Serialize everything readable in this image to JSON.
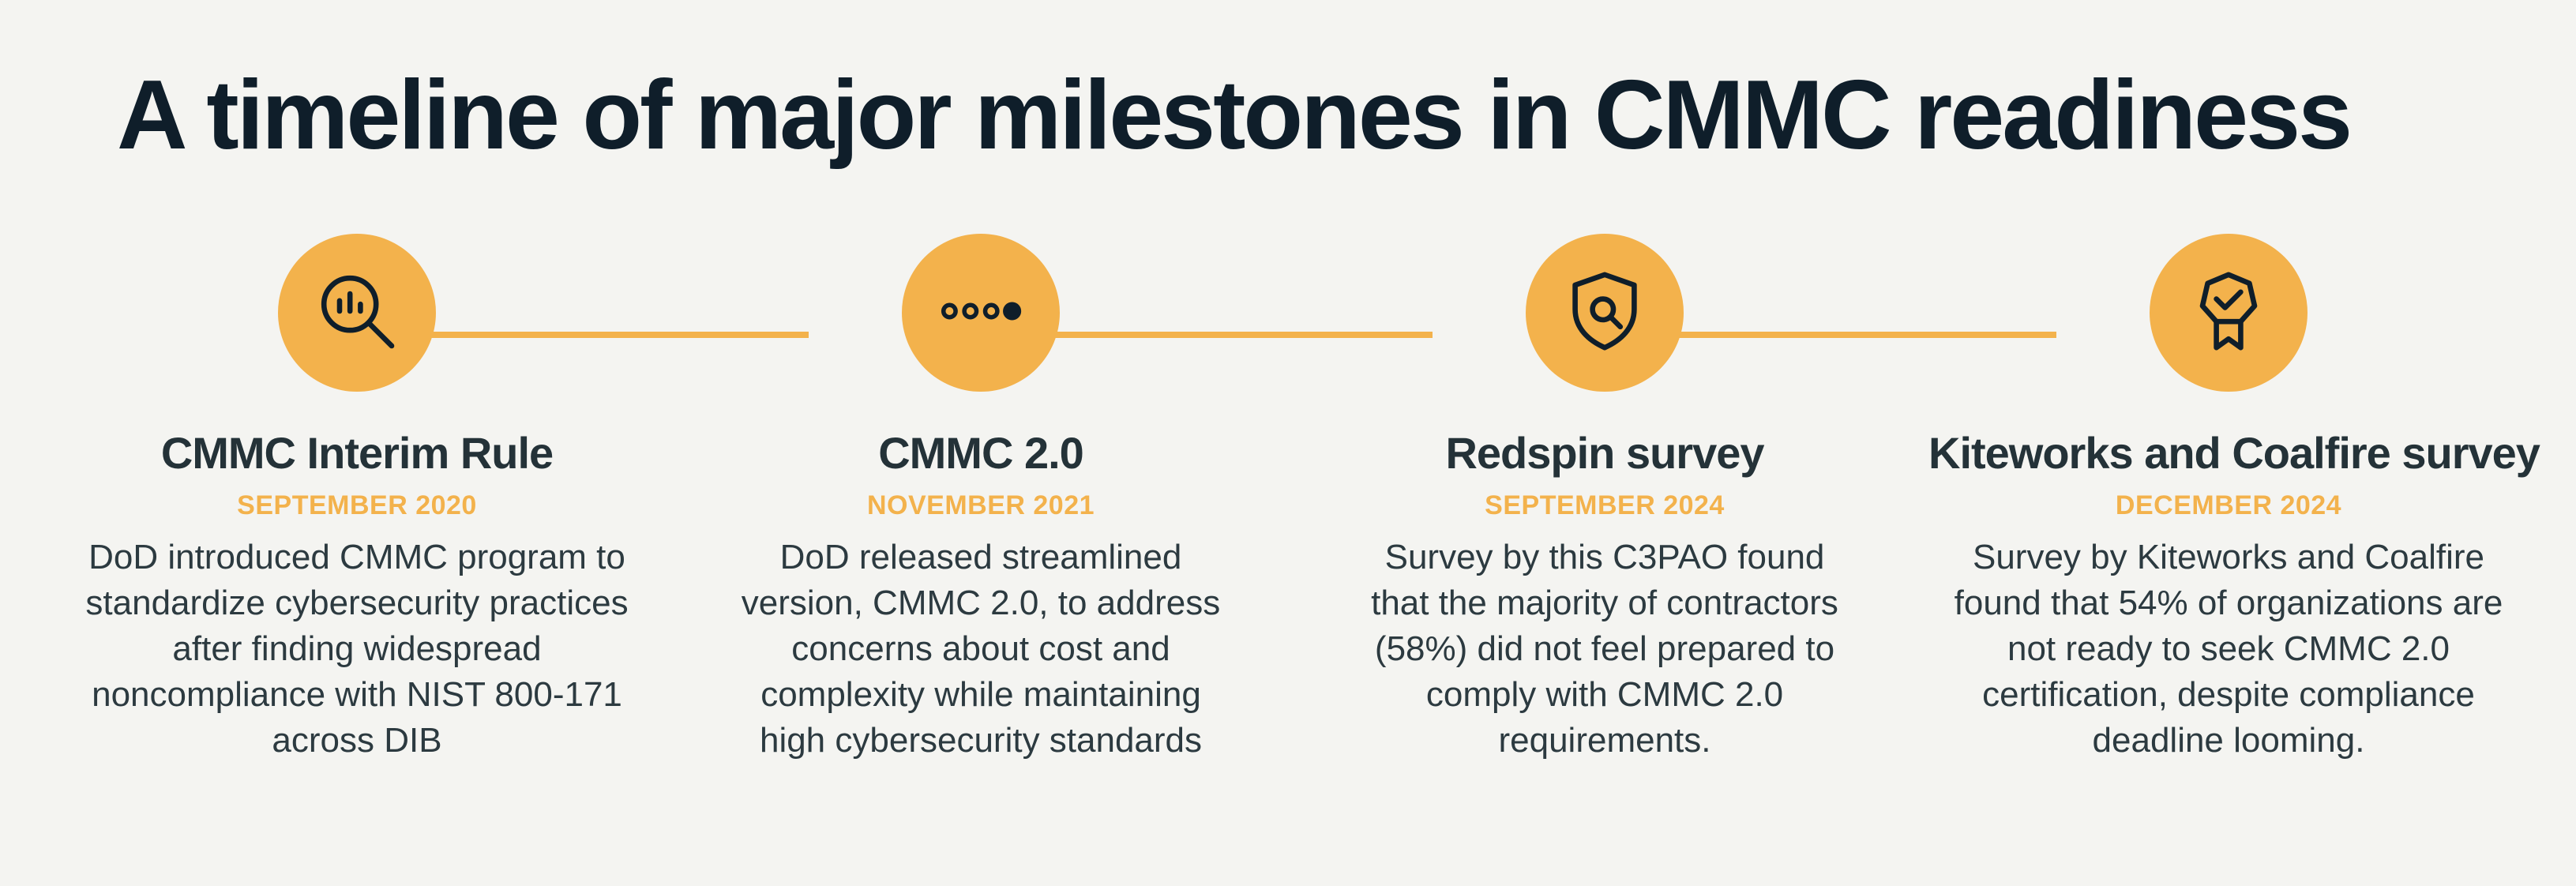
{
  "title": "A timeline of major milestones in CMMC readiness",
  "colors": {
    "accent": "#f3b24c",
    "title": "#0f1e2a",
    "text": "#243238",
    "background": "#f4f4f1"
  },
  "milestones": [
    {
      "icon": "magnifier-chart-icon",
      "title": "CMMC Interim Rule",
      "date": "SEPTEMBER 2020",
      "description": "DoD introduced CMMC program to standardize cybersecurity practices after finding widespread noncompliance with NIST 800-171 across DIB"
    },
    {
      "icon": "progress-dots-icon",
      "title": "CMMC 2.0",
      "date": "NOVEMBER 2021",
      "description": "DoD released streamlined version, CMMC 2.0, to address concerns about cost and complexity while maintaining high cybersecurity standards"
    },
    {
      "icon": "shield-search-icon",
      "title": "Redspin survey",
      "date": "SEPTEMBER 2024",
      "description": "Survey by this C3PAO found that the majority of contractors (58%) did not feel prepared to comply with CMMC 2.0 requirements."
    },
    {
      "icon": "award-badge-icon",
      "title": "Kiteworks and Coalfire survey",
      "date": "DECEMBER 2024",
      "description": "Survey by Kiteworks and Coalfire found that 54% of organizations are not ready to seek CMMC 2.0 certification, despite compliance deadline looming."
    }
  ]
}
